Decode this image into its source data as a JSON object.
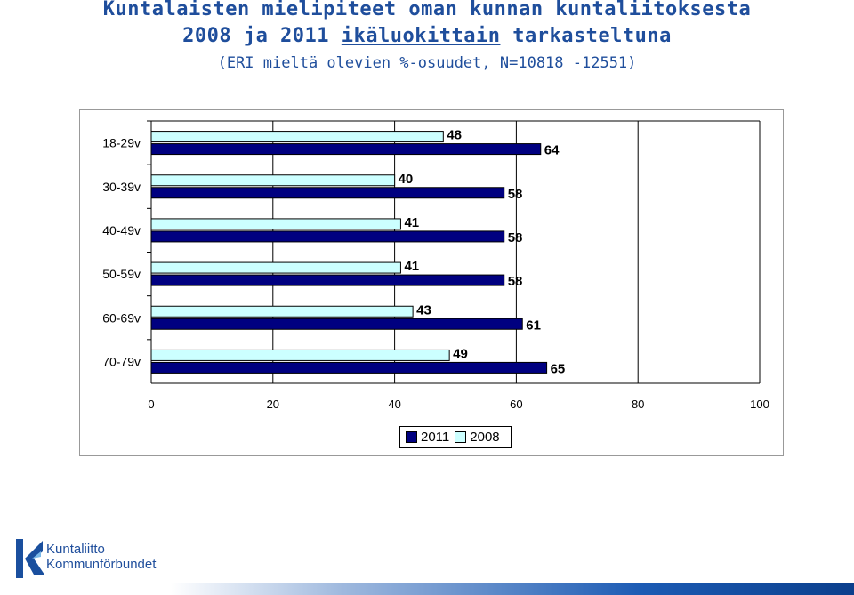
{
  "title": {
    "line1": "Kuntalaisten mielipiteet oman kunnan kuntaliitoksesta",
    "line2_prefix": "2008 ja 2011 ",
    "line2_underlined": "ikäluokittain",
    "line2_suffix": " tarkasteltuna",
    "subtitle": "(ERI mieltä olevien %-osuudet, N=10818 -12551)"
  },
  "logo": {
    "line1": "Kuntaliitto",
    "line2": "Kommunförbundet"
  },
  "colors": {
    "series_2011": "#000080",
    "series_2008": "#ccffff",
    "title": "#1f4e9c"
  },
  "chart_data": {
    "type": "bar",
    "orientation": "horizontal",
    "categories": [
      "18-29v",
      "30-39v",
      "40-49v",
      "50-59v",
      "60-69v",
      "70-79v"
    ],
    "series": [
      {
        "name": "2011",
        "values": [
          64,
          58,
          58,
          58,
          61,
          65
        ]
      },
      {
        "name": "2008",
        "values": [
          48,
          40,
          41,
          41,
          43,
          49
        ]
      }
    ],
    "xlim": [
      0,
      100
    ],
    "xticks": [
      "0",
      "20",
      "40",
      "60",
      "80",
      "100"
    ],
    "grid": "vertical",
    "legend_placement": "bottom",
    "data_labels": true
  }
}
